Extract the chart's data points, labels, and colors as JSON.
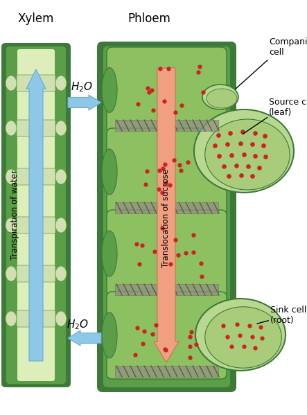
{
  "bg_color": "#ffffff",
  "xylem_label": "Xylem",
  "phloem_label": "Phloem",
  "transpiration_label": "Transpiration of water",
  "sucrose_label": "Translocation of sucrose",
  "companion_label": "Companion\ncell",
  "source_label": "Source cell\n(leaf)",
  "sink_label": "Sink cell\n(root)",
  "dark_green": "#3d7a3a",
  "medium_green": "#5a9e48",
  "light_green": "#7ab85a",
  "cell_green": "#8dc060",
  "pale_green": "#a8cc7a",
  "lighter_green": "#b8d890",
  "blue_arrow": "#8ec8e8",
  "blue_dark": "#6aabcc",
  "salmon_arrow": "#f0a080",
  "red_dot": "#cc2222",
  "sieve_gray": "#909080",
  "xylem_inner": "#e8f0d0",
  "notch_color": "#d0e0b0"
}
